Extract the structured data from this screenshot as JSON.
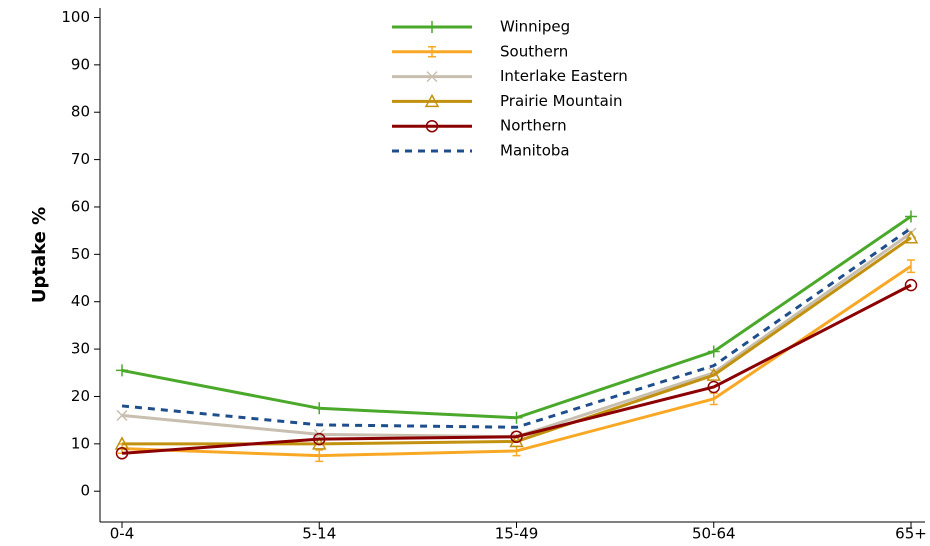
{
  "chart_data": {
    "type": "line",
    "y_label": "Uptake %",
    "categories": [
      "0-4",
      "5-14",
      "15-49",
      "50-64",
      "65+"
    ],
    "ylim": [
      -6.5,
      102
    ],
    "yticks": [
      0,
      10,
      20,
      30,
      40,
      50,
      60,
      70,
      80,
      90,
      100
    ],
    "legend": "top",
    "series": [
      {
        "name": "Winnipeg",
        "color": "#4aa92a",
        "marker": "plus",
        "values": [
          25.5,
          17.5,
          15.5,
          29.5,
          58
        ]
      },
      {
        "name": "Southern",
        "color": "#f9a825",
        "marker": "errorbar",
        "values": [
          9,
          7.5,
          8.5,
          19.5,
          47.5
        ],
        "errors": [
          1,
          1.2,
          1,
          1.2,
          1.3
        ]
      },
      {
        "name": "Interlake Eastern",
        "color": "#c8bfb0",
        "marker": "x",
        "values": [
          16,
          12,
          11.5,
          25,
          54.5
        ]
      },
      {
        "name": "Prairie Mountain",
        "color": "#c2910f",
        "marker": "triangle",
        "values": [
          10,
          10,
          10.5,
          24.5,
          53.5
        ]
      },
      {
        "name": "Northern",
        "color": "#8b0000",
        "marker": "circle",
        "values": [
          8,
          11,
          11.5,
          22,
          43.5
        ]
      },
      {
        "name": "Manitoba",
        "color": "#1f4e8c",
        "marker": "dashed",
        "values": [
          18,
          14,
          13.5,
          26.5,
          55.5
        ]
      }
    ]
  }
}
